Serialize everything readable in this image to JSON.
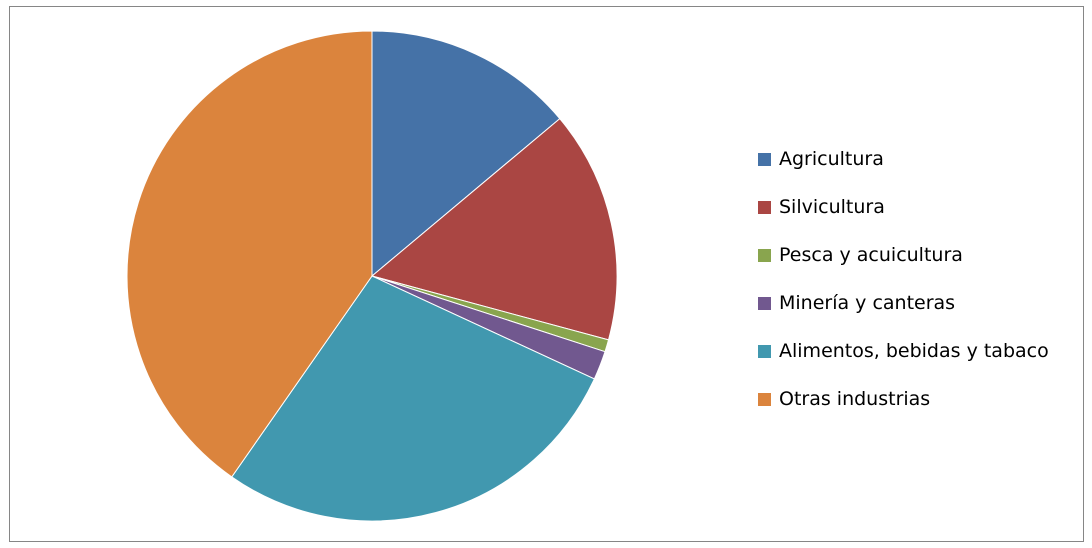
{
  "chart_data": {
    "type": "pie",
    "title": "",
    "categories": [
      "Agricultura",
      "Silvicultura",
      "Pesca y acuicultura",
      "Minería y canteras",
      "Alimentos, bebidas y tabaco",
      "Otras industrias"
    ],
    "values": [
      13.9,
      15.3,
      0.8,
      1.9,
      27.8,
      40.3
    ],
    "colors": [
      "#4572A7",
      "#AA4643",
      "#89A54E",
      "#71588F",
      "#4198AF",
      "#DB843D"
    ],
    "legend_position": "right"
  }
}
